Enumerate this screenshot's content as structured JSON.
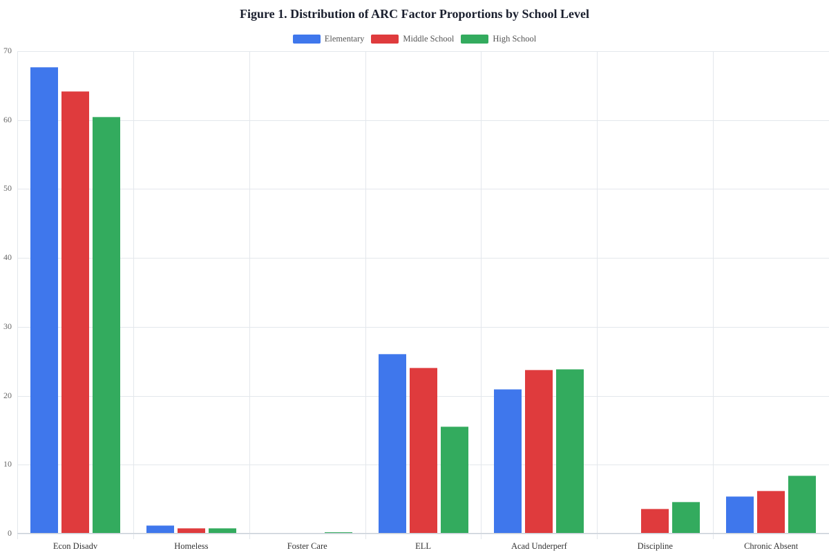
{
  "chart_data": {
    "type": "bar",
    "title": "Figure 1. Distribution of ARC Factor Proportions by School Level",
    "xlabel": "",
    "ylabel": "",
    "ylim": [
      0,
      70
    ],
    "yticks": [
      0,
      10,
      20,
      30,
      40,
      50,
      60,
      70
    ],
    "grid": true,
    "legend_position": "top-center",
    "categories": [
      "Econ Disadv",
      "Homeless",
      "Foster Care",
      "ELL",
      "Acad Underperf",
      "Discipline",
      "Chronic Absent"
    ],
    "series": [
      {
        "name": "Elementary",
        "color": "#3f77ec",
        "values": [
          67.7,
          1.2,
          0.1,
          26.1,
          21.0,
          0.05,
          5.4
        ]
      },
      {
        "name": "Middle School",
        "color": "#df3b3d",
        "values": [
          64.2,
          0.8,
          0.0,
          24.1,
          23.8,
          3.6,
          6.2
        ]
      },
      {
        "name": "High School",
        "color": "#33ab5e",
        "values": [
          60.5,
          0.8,
          0.2,
          15.5,
          23.9,
          4.6,
          8.4
        ]
      }
    ]
  },
  "title": "Figure 1. Distribution of ARC Factor Proportions by School Level",
  "legend": [
    {
      "label": "Elementary",
      "color": "#3f77ec"
    },
    {
      "label": "Middle School",
      "color": "#df3b3d"
    },
    {
      "label": "High School",
      "color": "#33ab5e"
    }
  ]
}
